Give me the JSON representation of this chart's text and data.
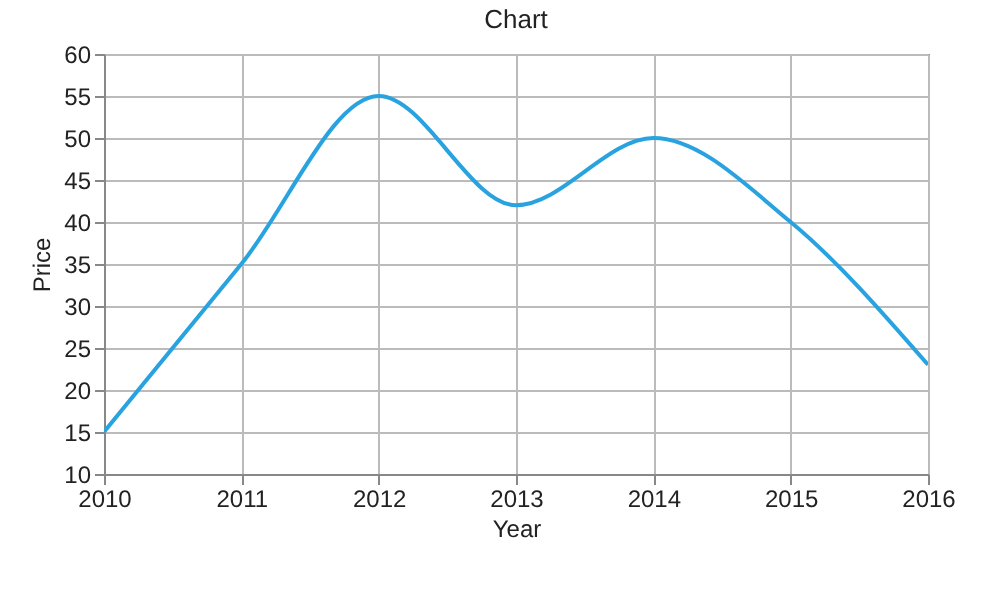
{
  "chart_data": {
    "type": "line",
    "title": "Chart",
    "xlabel": "Year",
    "ylabel": "Price",
    "x": [
      2010,
      2011,
      2012,
      2013,
      2014,
      2015,
      2016
    ],
    "series": [
      {
        "color": "#29a3e0",
        "values": [
          15,
          35,
          55,
          42,
          50,
          40,
          23
        ]
      }
    ],
    "xlim": [
      2010,
      2016
    ],
    "xticks": [
      2010,
      2011,
      2012,
      2013,
      2014,
      2015,
      2016
    ],
    "ylim": [
      10,
      60
    ],
    "yticks": [
      10,
      15,
      20,
      25,
      30,
      35,
      40,
      45,
      50,
      55,
      60
    ],
    "grid": true,
    "marker": "none",
    "line_style": "solid"
  }
}
